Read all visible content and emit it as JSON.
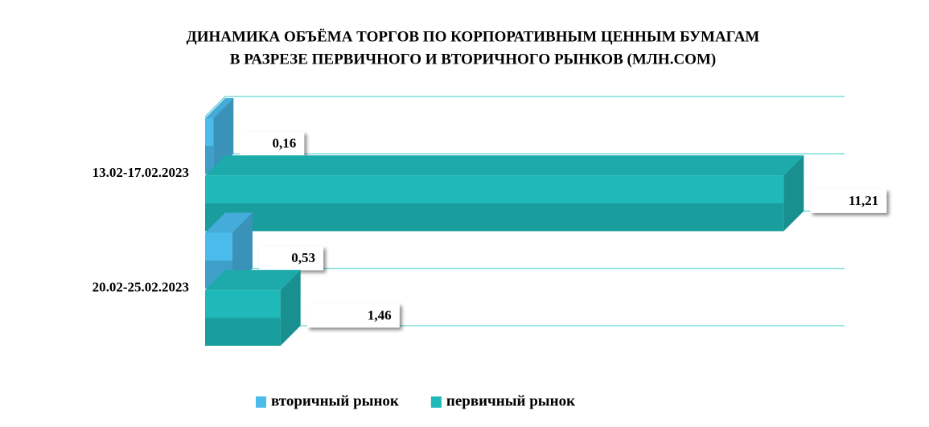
{
  "chart_data": {
    "type": "bar",
    "orientation": "horizontal",
    "title": "ДИНАМИКА ОБЪЁМА ТОРГОВ ПО КОРПОРАТИВНЫМ ЦЕННЫМ БУМАГАМ",
    "subtitle": "В РАЗРЕЗЕ ПЕРВИЧНОГО И ВТОРИЧНОГО РЫНКОВ  (МЛН.СОМ)",
    "categories": [
      "13.02-17.02.2023",
      "20.02-25.02.2023"
    ],
    "series": [
      {
        "name": "вторичный рынок",
        "color": "#4bbbec",
        "values": [
          0.16,
          0.53
        ],
        "value_labels": [
          "0,16",
          "0,53"
        ]
      },
      {
        "name": "первичный рынок",
        "color": "#1fb9b9",
        "values": [
          11.21,
          1.46
        ],
        "value_labels": [
          "11,21",
          "1,46"
        ]
      }
    ],
    "xlim": [
      0,
      12
    ],
    "grid": true,
    "legend": "bottom"
  }
}
